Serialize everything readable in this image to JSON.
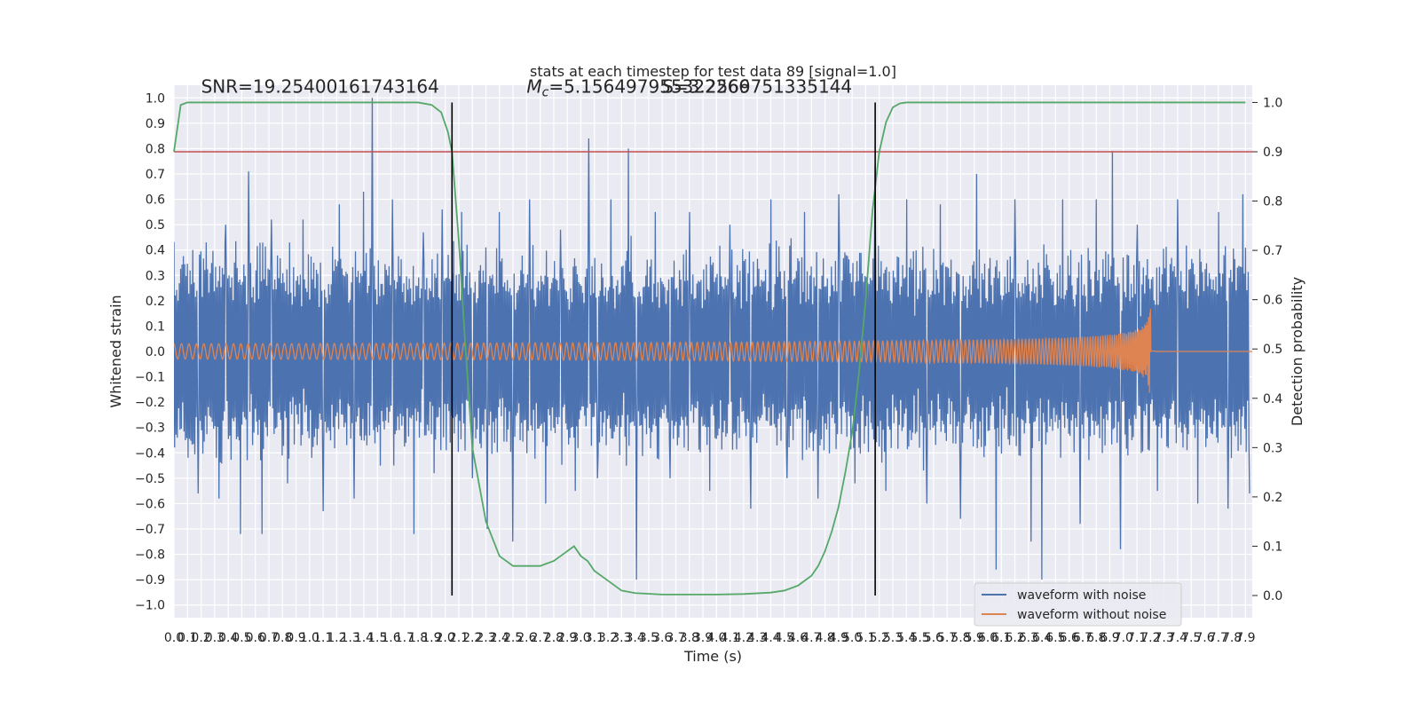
{
  "chart_data": {
    "type": "line",
    "title": "stats at each timestep for test data 89 [signal=1.0]",
    "xlabel": "Time (s)",
    "ylabel": "Whitened strain",
    "y2label": "Detection probability",
    "xlim": [
      0.0,
      7.95
    ],
    "ylim": [
      -1.05,
      1.05
    ],
    "y2lim": [
      -0.045,
      1.035
    ],
    "x_ticks": [
      0.0,
      0.1,
      0.2,
      0.3,
      0.4,
      0.5,
      0.6,
      0.7,
      0.8,
      0.9,
      1.0,
      1.1,
      1.2,
      1.3,
      1.4,
      1.5,
      1.6,
      1.7,
      1.8,
      1.9,
      2.0,
      2.1,
      2.2,
      2.3,
      2.4,
      2.5,
      2.6,
      2.7,
      2.8,
      2.9,
      3.0,
      3.1,
      3.2,
      3.3,
      3.4,
      3.5,
      3.6,
      3.7,
      3.8,
      3.9,
      4.0,
      4.1,
      4.2,
      4.3,
      4.4,
      4.5,
      4.6,
      4.7,
      4.8,
      4.9,
      5.0,
      5.1,
      5.2,
      5.3,
      5.4,
      5.5,
      5.6,
      5.7,
      5.8,
      5.9,
      6.0,
      6.1,
      6.2,
      6.3,
      6.4,
      6.5,
      6.6,
      6.7,
      6.8,
      6.9,
      7.0,
      7.1,
      7.2,
      7.3,
      7.4,
      7.5,
      7.6,
      7.7,
      7.8,
      7.9
    ],
    "x_tick_labels": [
      "0.0",
      "0.1",
      "0.2",
      "0.3",
      "0.4",
      "0.5",
      "0.6",
      "0.7",
      "0.8",
      "0.9",
      "1.0",
      "1.1",
      "1.2",
      "1.3",
      "1.4",
      "1.5",
      "1.6",
      "1.7",
      "1.8",
      "1.9",
      "2.0",
      "2.1",
      "2.2",
      "2.3",
      "2.4",
      "2.5",
      "2.6",
      "2.7",
      "2.8",
      "2.9",
      "3.0",
      "3.1",
      "3.2",
      "3.3",
      "3.4",
      "3.5",
      "3.6",
      "3.7",
      "3.8",
      "3.9",
      "4.0",
      "4.1",
      "4.2",
      "4.3",
      "4.4",
      "4.5",
      "4.6",
      "4.7",
      "4.8",
      "4.9",
      "5.0",
      "5.1",
      "5.2",
      "5.3",
      "5.4",
      "5.5",
      "5.6",
      "5.7",
      "5.8",
      "5.9",
      "6.0",
      "6.1",
      "6.2",
      "6.3",
      "6.4",
      "6.5",
      "6.6",
      "6.7",
      "6.8",
      "6.9",
      "7.0",
      "7.1",
      "7.2",
      "7.3",
      "7.4",
      "7.5",
      "7.6",
      "7.7",
      "7.8",
      "7.9"
    ],
    "y_ticks": [
      -1.0,
      -0.9,
      -0.8,
      -0.7,
      -0.6,
      -0.5,
      -0.4,
      -0.3,
      -0.2,
      -0.1,
      0.0,
      0.1,
      0.2,
      0.3,
      0.4,
      0.5,
      0.6,
      0.7,
      0.8,
      0.9,
      1.0
    ],
    "y_tick_labels": [
      "−1.0",
      "−0.9",
      "−0.8",
      "−0.7",
      "−0.6",
      "−0.5",
      "−0.4",
      "−0.3",
      "−0.2",
      "−0.1",
      "0.0",
      "0.1",
      "0.2",
      "0.3",
      "0.4",
      "0.5",
      "0.6",
      "0.7",
      "0.8",
      "0.9",
      "1.0"
    ],
    "y2_ticks": [
      0.0,
      0.1,
      0.2,
      0.3,
      0.4,
      0.5,
      0.6,
      0.7,
      0.8,
      0.9,
      1.0
    ],
    "y2_tick_labels": [
      "0.0",
      "0.1",
      "0.2",
      "0.3",
      "0.4",
      "0.5",
      "0.6",
      "0.7",
      "0.8",
      "0.9",
      "1.0"
    ],
    "grid": true,
    "legend_position": "lower-right",
    "series": [
      {
        "name": "waveform with noise",
        "color": "#4c72b0",
        "axis": "left",
        "kind": "noise",
        "band_envelope": [
          0.3,
          0.45
        ],
        "spikes": [
          {
            "x": 0.18,
            "y": -0.56
          },
          {
            "x": 0.24,
            "y": 0.43
          },
          {
            "x": 0.33,
            "y": -0.58
          },
          {
            "x": 0.38,
            "y": 0.5
          },
          {
            "x": 0.49,
            "y": -0.72
          },
          {
            "x": 0.55,
            "y": 0.71
          },
          {
            "x": 0.65,
            "y": -0.72
          },
          {
            "x": 0.72,
            "y": 0.52
          },
          {
            "x": 0.84,
            "y": -0.52
          },
          {
            "x": 0.95,
            "y": 0.52
          },
          {
            "x": 1.1,
            "y": -0.63
          },
          {
            "x": 1.22,
            "y": 0.58
          },
          {
            "x": 1.33,
            "y": -0.58
          },
          {
            "x": 1.4,
            "y": 0.63
          },
          {
            "x": 1.46,
            "y": 1.0
          },
          {
            "x": 1.52,
            "y": -0.45
          },
          {
            "x": 1.61,
            "y": 0.6
          },
          {
            "x": 1.77,
            "y": -0.72
          },
          {
            "x": 1.84,
            "y": 0.47
          },
          {
            "x": 1.92,
            "y": -0.48
          },
          {
            "x": 1.98,
            "y": 0.56
          },
          {
            "x": 2.12,
            "y": 0.55
          },
          {
            "x": 2.2,
            "y": -0.5
          },
          {
            "x": 2.31,
            "y": -0.7
          },
          {
            "x": 2.4,
            "y": 0.55
          },
          {
            "x": 2.5,
            "y": -0.75
          },
          {
            "x": 2.62,
            "y": 0.6
          },
          {
            "x": 2.74,
            "y": -0.6
          },
          {
            "x": 2.85,
            "y": 0.48
          },
          {
            "x": 2.96,
            "y": -0.55
          },
          {
            "x": 3.06,
            "y": 0.84
          },
          {
            "x": 3.12,
            "y": -0.5
          },
          {
            "x": 3.22,
            "y": 0.6
          },
          {
            "x": 3.35,
            "y": 0.8
          },
          {
            "x": 3.41,
            "y": -0.9
          },
          {
            "x": 3.55,
            "y": 0.55
          },
          {
            "x": 3.66,
            "y": -0.5
          },
          {
            "x": 3.8,
            "y": 0.55
          },
          {
            "x": 3.95,
            "y": -0.55
          },
          {
            "x": 4.1,
            "y": 0.5
          },
          {
            "x": 4.25,
            "y": -0.62
          },
          {
            "x": 4.4,
            "y": 0.6
          },
          {
            "x": 4.52,
            "y": -0.5
          },
          {
            "x": 4.65,
            "y": 0.55
          },
          {
            "x": 4.75,
            "y": -0.58
          },
          {
            "x": 4.9,
            "y": 0.62
          },
          {
            "x": 5.02,
            "y": -0.52
          },
          {
            "x": 5.17,
            "y": 0.74
          },
          {
            "x": 5.25,
            "y": -0.55
          },
          {
            "x": 5.4,
            "y": 0.6
          },
          {
            "x": 5.55,
            "y": -0.6
          },
          {
            "x": 5.65,
            "y": 0.58
          },
          {
            "x": 5.8,
            "y": -0.66
          },
          {
            "x": 5.92,
            "y": 0.7
          },
          {
            "x": 6.06,
            "y": -0.86
          },
          {
            "x": 6.2,
            "y": 0.6
          },
          {
            "x": 6.32,
            "y": -0.75
          },
          {
            "x": 6.4,
            "y": -0.9
          },
          {
            "x": 6.55,
            "y": 0.6
          },
          {
            "x": 6.68,
            "y": -0.68
          },
          {
            "x": 6.8,
            "y": 0.6
          },
          {
            "x": 6.92,
            "y": 0.79
          },
          {
            "x": 6.98,
            "y": -0.78
          },
          {
            "x": 7.1,
            "y": 0.5
          },
          {
            "x": 7.25,
            "y": -0.55
          },
          {
            "x": 7.4,
            "y": 0.6
          },
          {
            "x": 7.55,
            "y": -0.6
          },
          {
            "x": 7.7,
            "y": 0.55
          },
          {
            "x": 7.77,
            "y": -0.62
          },
          {
            "x": 7.88,
            "y": 0.62
          },
          {
            "x": 7.93,
            "y": -0.56
          }
        ]
      },
      {
        "name": "waveform without noise",
        "color": "#dd8452",
        "axis": "left",
        "kind": "chirp",
        "merger_time": 7.2,
        "amplitude_start": 0.03,
        "amplitude_peak": 0.38,
        "start_frequency_hz": 18
      },
      {
        "name": "",
        "color": "#55a868",
        "axis": "right",
        "kind": "probability",
        "x": [
          0.0,
          0.05,
          0.1,
          0.2,
          0.4,
          0.8,
          1.2,
          1.6,
          1.8,
          1.9,
          1.97,
          2.02,
          2.05,
          2.1,
          2.15,
          2.2,
          2.3,
          2.4,
          2.5,
          2.6,
          2.7,
          2.8,
          2.85,
          2.9,
          2.95,
          3.0,
          3.05,
          3.1,
          3.2,
          3.3,
          3.4,
          3.6,
          3.8,
          4.0,
          4.2,
          4.4,
          4.5,
          4.6,
          4.7,
          4.75,
          4.8,
          4.85,
          4.9,
          4.95,
          5.0,
          5.05,
          5.1,
          5.15,
          5.2,
          5.25,
          5.3,
          5.35,
          5.4,
          5.6,
          6.0,
          7.0,
          7.9
        ],
        "y": [
          0.9,
          0.995,
          1.0,
          1.0,
          1.0,
          1.0,
          1.0,
          1.0,
          1.0,
          0.995,
          0.98,
          0.94,
          0.9,
          0.72,
          0.5,
          0.3,
          0.15,
          0.08,
          0.06,
          0.06,
          0.06,
          0.07,
          0.08,
          0.09,
          0.1,
          0.08,
          0.07,
          0.05,
          0.03,
          0.01,
          0.005,
          0.002,
          0.002,
          0.002,
          0.003,
          0.006,
          0.01,
          0.02,
          0.04,
          0.06,
          0.09,
          0.13,
          0.18,
          0.25,
          0.33,
          0.45,
          0.6,
          0.78,
          0.9,
          0.96,
          0.99,
          0.998,
          1.0,
          1.0,
          1.0,
          1.0,
          1.0
        ]
      }
    ],
    "threshold": {
      "value": 0.9,
      "axis": "right",
      "color": "#c44e52"
    },
    "vlines": [
      2.05,
      5.17
    ],
    "vline_color": "#000000",
    "annotations": [
      {
        "text": "SNR=19.25400161743164",
        "x": 0.2,
        "y": 1.02
      },
      {
        "text": "=5.156497955322266",
        "math_prefix": "M_c",
        "x": 2.6,
        "y": 1.02
      },
      {
        "text": "S=3.2569751335144",
        "x": 3.6,
        "y": 1.02
      }
    ]
  }
}
